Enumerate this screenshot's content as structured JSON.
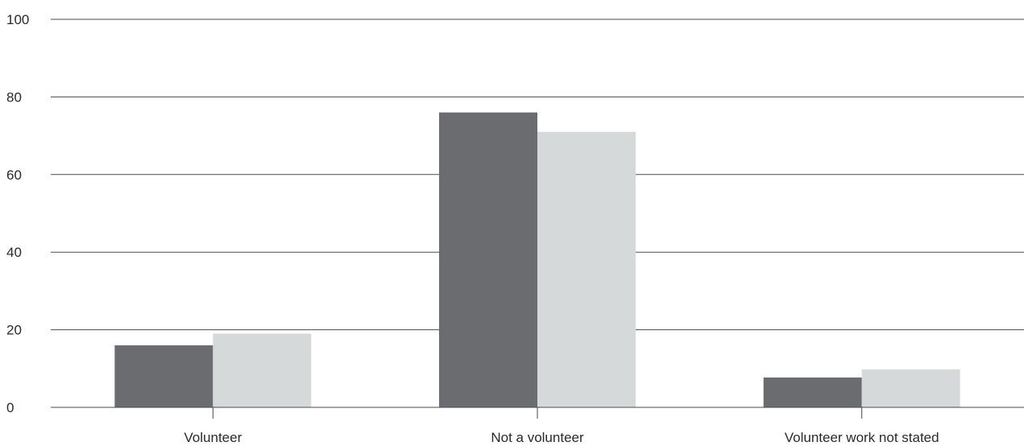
{
  "chart_data": {
    "type": "bar",
    "title": "",
    "xlabel": "",
    "ylabel": "",
    "categories": [
      "Volunteer",
      "Not a volunteer",
      "Volunteer work not stated"
    ],
    "series": [
      {
        "values": [
          16,
          76,
          7.7
        ],
        "color": "#6b6c70"
      },
      {
        "values": [
          19,
          71,
          9.8
        ],
        "color": "#d6d9d9"
      }
    ],
    "ylim": [
      0,
      100
    ],
    "yticks": [
      "0",
      "20",
      "40",
      "60",
      "80",
      "100"
    ],
    "grid": true,
    "legend": "none"
  }
}
